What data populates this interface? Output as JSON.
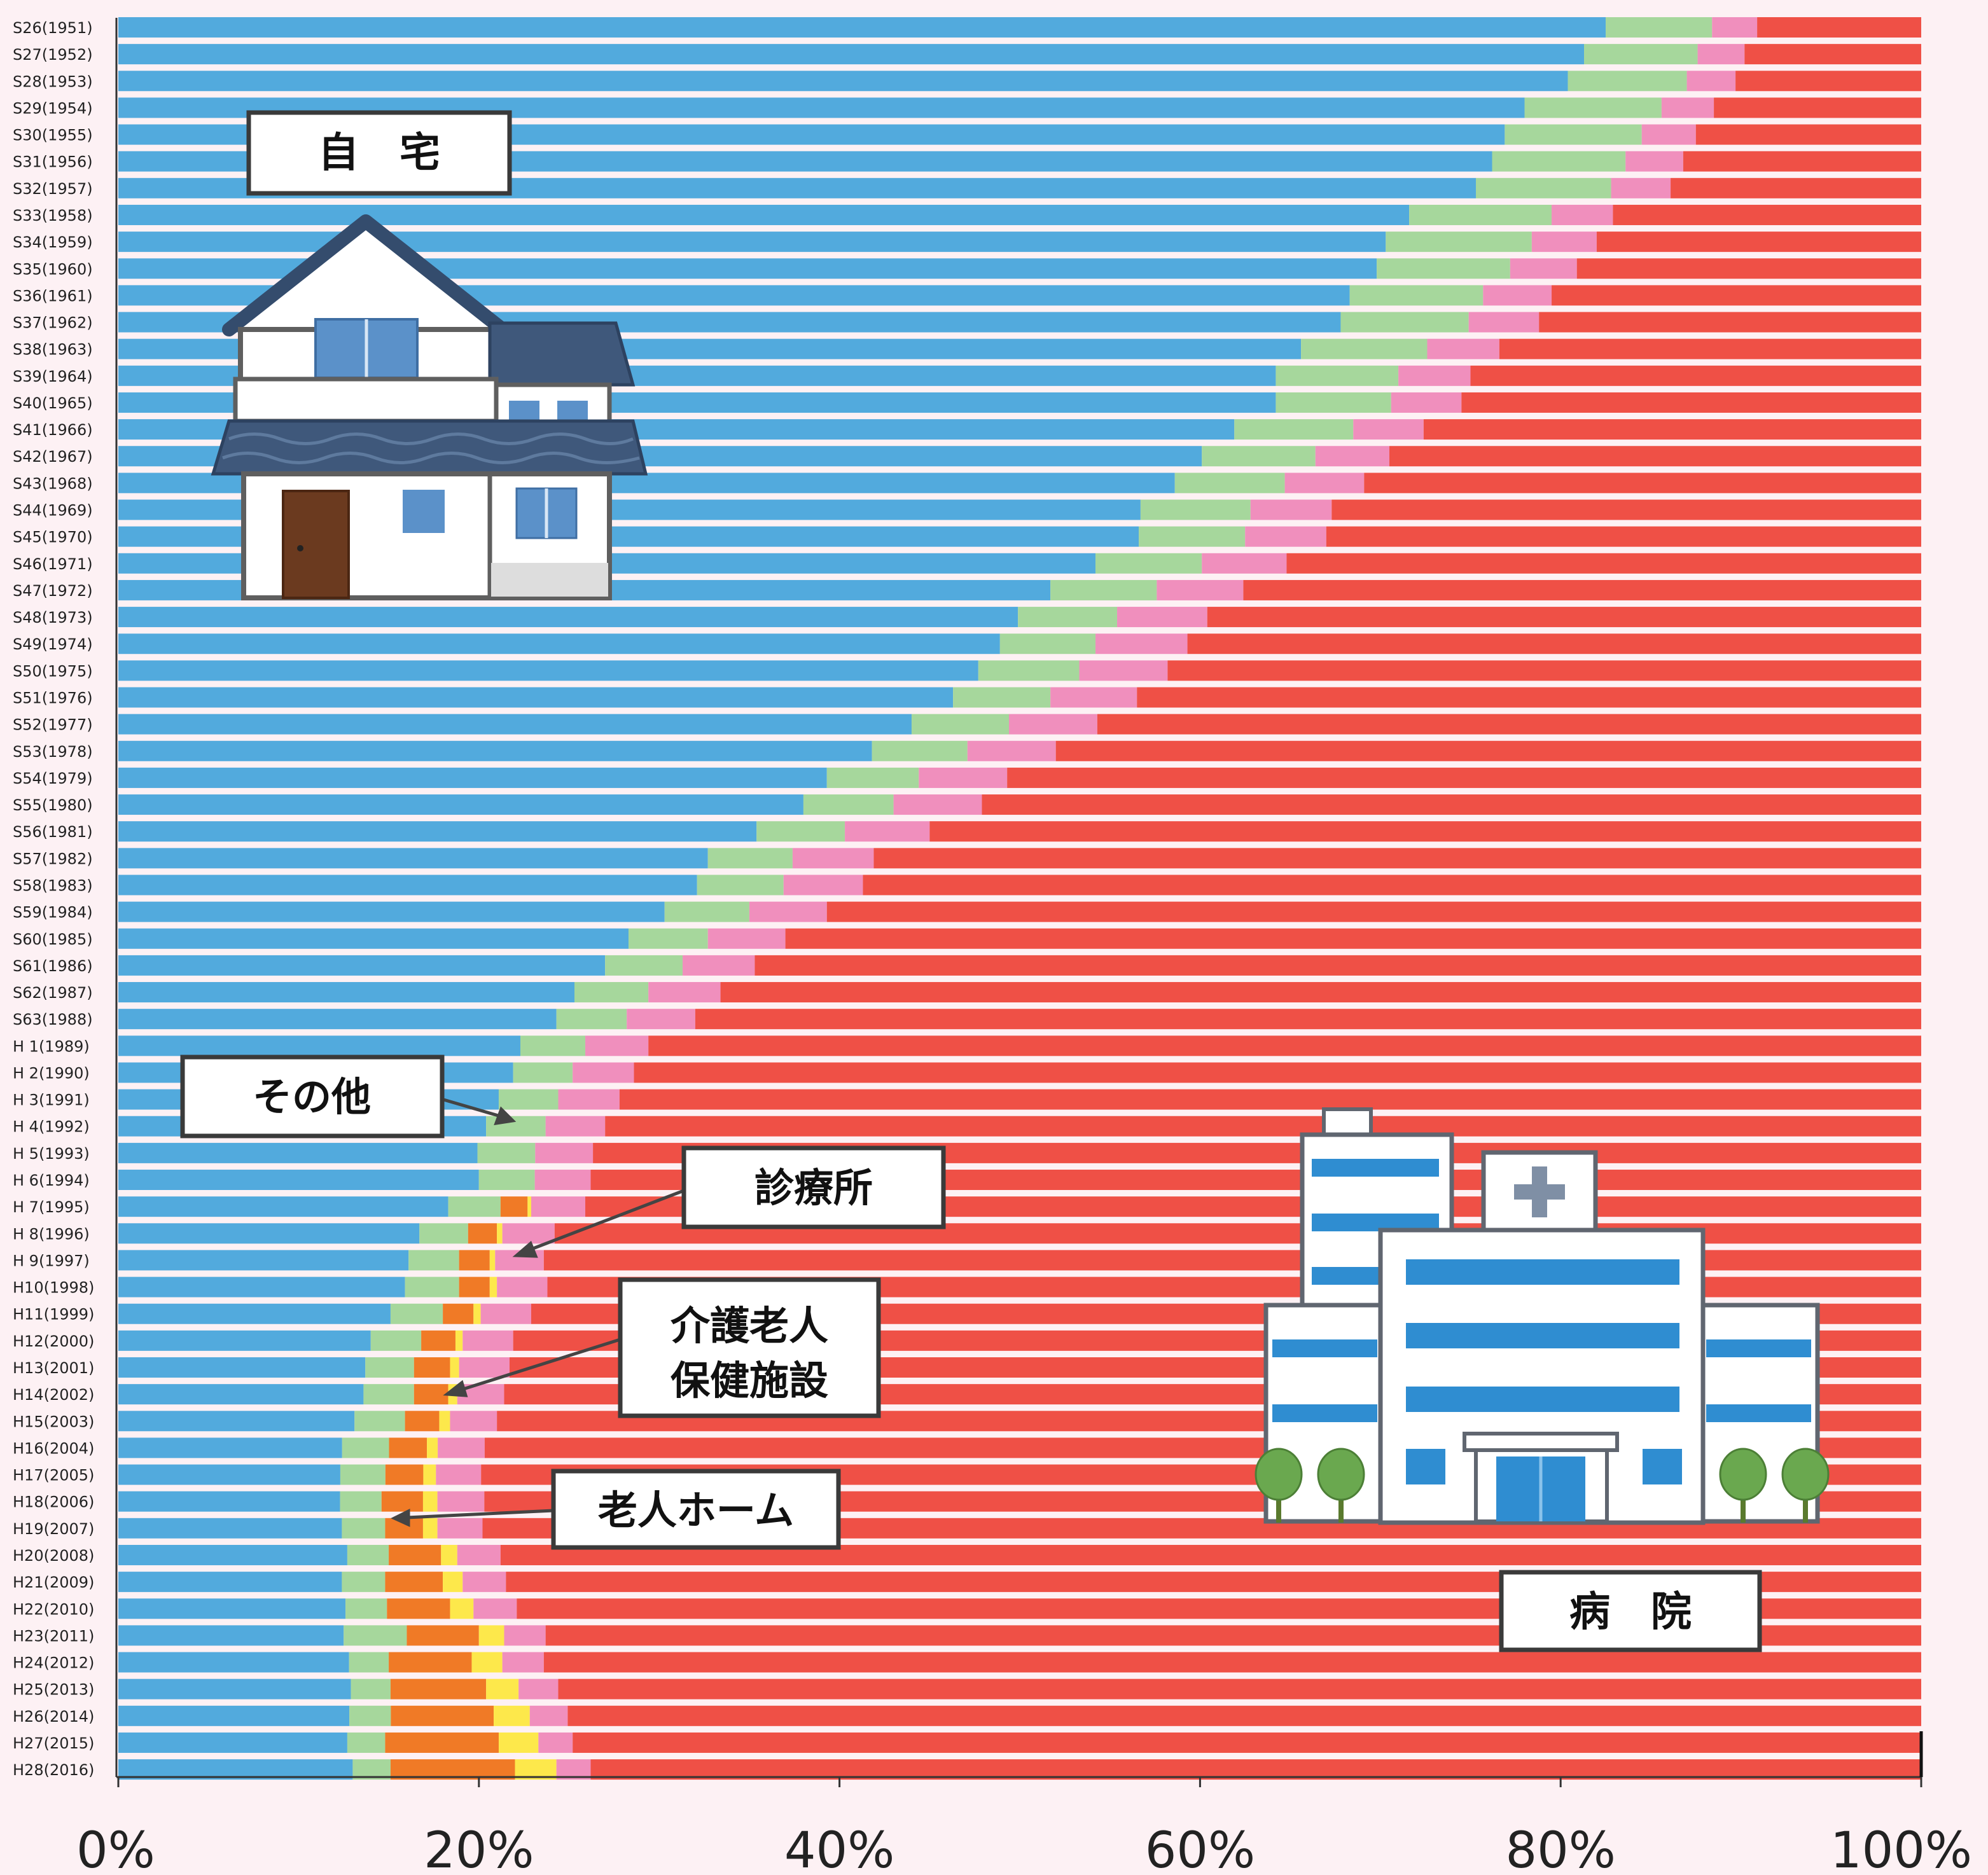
{
  "chart_data": {
    "type": "bar",
    "orientation": "horizontal",
    "stacked": true,
    "normalized": "percent",
    "title": "",
    "xlabel": "",
    "ylabel": "",
    "xlim": [
      0,
      100
    ],
    "x_ticks": [
      "0%",
      "20%",
      "40%",
      "60%",
      "80%",
      "100%"
    ],
    "categories": [
      "S26(1951)",
      "S27(1952)",
      "S28(1953)",
      "S29(1954)",
      "S30(1955)",
      "S31(1956)",
      "S32(1957)",
      "S33(1958)",
      "S34(1959)",
      "S35(1960)",
      "S36(1961)",
      "S37(1962)",
      "S38(1963)",
      "S39(1964)",
      "S40(1965)",
      "S41(1966)",
      "S42(1967)",
      "S43(1968)",
      "S44(1969)",
      "S45(1970)",
      "S46(1971)",
      "S47(1972)",
      "S48(1973)",
      "S49(1974)",
      "S50(1975)",
      "S51(1976)",
      "S52(1977)",
      "S53(1978)",
      "S54(1979)",
      "S55(1980)",
      "S56(1981)",
      "S57(1982)",
      "S58(1983)",
      "S59(1984)",
      "S60(1985)",
      "S61(1986)",
      "S62(1987)",
      "S63(1988)",
      "H  1(1989)",
      "H  2(1990)",
      "H  3(1991)",
      "H  4(1992)",
      "H  5(1993)",
      "H  6(1994)",
      "H  7(1995)",
      "H  8(1996)",
      "H  9(1997)",
      "H10(1998)",
      "H11(1999)",
      "H12(2000)",
      "H13(2001)",
      "H14(2002)",
      "H15(2003)",
      "H16(2004)",
      "H17(2005)",
      "H18(2006)",
      "H19(2007)",
      "H20(2008)",
      "H21(2009)",
      "H22(2010)",
      "H23(2011)",
      "H24(2012)",
      "H25(2013)",
      "H26(2014)",
      "H27(2015)",
      "H28(2016)"
    ],
    "series_order": [
      "自宅",
      "その他",
      "介護老人保健施設",
      "老人ホーム",
      "診療所",
      "病院"
    ],
    "series": [
      {
        "key": "home",
        "color": "#52aadd",
        "values": [
          82.5,
          81.3,
          80.4,
          78.0,
          76.9,
          76.2,
          75.3,
          71.6,
          70.3,
          69.8,
          68.3,
          67.8,
          65.6,
          64.2,
          64.2,
          61.9,
          60.1,
          58.6,
          56.7,
          56.6,
          54.2,
          51.7,
          49.9,
          48.9,
          47.7,
          46.3,
          44.0,
          41.8,
          39.3,
          38.0,
          35.4,
          32.7,
          32.1,
          30.3,
          28.3,
          27.0,
          25.3,
          24.3,
          22.3,
          21.9,
          21.1,
          20.4,
          19.9,
          20.0,
          18.3,
          16.7,
          16.1,
          15.9,
          15.1,
          14.0,
          13.7,
          13.6,
          13.1,
          12.4,
          12.3,
          12.3,
          12.4,
          12.7,
          12.4,
          12.6,
          12.5,
          12.8,
          12.9,
          12.8,
          12.7,
          13.0
        ]
      },
      {
        "key": "other",
        "color": "#a6d79c",
        "values": [
          5.9,
          6.3,
          6.6,
          7.6,
          7.6,
          7.4,
          7.5,
          7.9,
          8.1,
          7.4,
          7.4,
          7.1,
          7.0,
          6.8,
          6.4,
          6.6,
          6.3,
          6.1,
          6.1,
          5.9,
          5.9,
          5.9,
          5.5,
          5.3,
          5.6,
          5.4,
          5.4,
          5.3,
          5.1,
          5.0,
          4.9,
          4.7,
          4.8,
          4.7,
          4.4,
          4.3,
          4.1,
          3.9,
          3.6,
          3.3,
          3.3,
          3.3,
          3.2,
          3.1,
          2.9,
          2.7,
          2.8,
          3.0,
          2.9,
          2.8,
          2.7,
          2.8,
          2.8,
          2.6,
          2.5,
          2.3,
          2.4,
          2.3,
          2.4,
          2.3,
          3.5,
          2.2,
          2.2,
          2.3,
          2.1,
          2.1
        ]
      },
      {
        "key": "rokenshisetsu",
        "color": "#f07a26",
        "values": [
          0,
          0,
          0,
          0,
          0,
          0,
          0,
          0,
          0,
          0,
          0,
          0,
          0,
          0,
          0,
          0,
          0,
          0,
          0,
          0,
          0,
          0,
          0,
          0,
          0,
          0,
          0,
          0,
          0,
          0,
          0,
          0,
          0,
          0,
          0,
          0,
          0,
          0,
          0,
          0,
          0,
          0,
          0,
          0,
          1.5,
          1.6,
          1.7,
          1.7,
          1.7,
          1.9,
          2.0,
          1.9,
          1.9,
          2.1,
          2.1,
          2.3,
          2.1,
          2.9,
          3.2,
          3.5,
          4.0,
          4.6,
          5.3,
          5.7,
          6.3,
          6.9
        ]
      },
      {
        "key": "rojinhome",
        "color": "#fde84b",
        "values": [
          0,
          0,
          0,
          0,
          0,
          0,
          0,
          0,
          0,
          0,
          0,
          0,
          0,
          0,
          0,
          0,
          0,
          0,
          0,
          0,
          0,
          0,
          0,
          0,
          0,
          0,
          0,
          0,
          0,
          0,
          0,
          0,
          0,
          0,
          0,
          0,
          0,
          0,
          0,
          0,
          0,
          0,
          0,
          0,
          0.2,
          0.3,
          0.3,
          0.4,
          0.4,
          0.4,
          0.5,
          0.5,
          0.6,
          0.6,
          0.7,
          0.8,
          0.8,
          0.9,
          1.1,
          1.3,
          1.4,
          1.7,
          1.8,
          2.0,
          2.2,
          2.3
        ]
      },
      {
        "key": "shinryosho",
        "color": "#f08fbd",
        "values": [
          2.5,
          2.6,
          2.7,
          2.9,
          3.0,
          3.2,
          3.3,
          3.4,
          3.6,
          3.7,
          3.8,
          3.9,
          4.0,
          4.0,
          3.9,
          3.9,
          4.1,
          4.4,
          4.5,
          4.5,
          4.7,
          4.8,
          5.0,
          5.1,
          4.9,
          4.8,
          4.9,
          4.9,
          4.9,
          4.9,
          4.7,
          4.5,
          4.4,
          4.3,
          4.3,
          4.0,
          4.0,
          3.8,
          3.5,
          3.4,
          3.4,
          3.3,
          3.2,
          3.1,
          3.0,
          2.9,
          2.7,
          2.8,
          2.8,
          2.8,
          2.8,
          2.6,
          2.6,
          2.6,
          2.5,
          2.6,
          2.5,
          2.4,
          2.4,
          2.4,
          2.3,
          2.3,
          2.2,
          2.1,
          1.9,
          1.9
        ]
      },
      {
        "key": "hospital",
        "color": "#ef5046",
        "values": [
          9.1,
          9.8,
          10.3,
          11.5,
          12.5,
          13.2,
          13.9,
          17.1,
          18.0,
          19.1,
          20.5,
          21.2,
          23.4,
          25.0,
          25.5,
          27.6,
          29.5,
          30.9,
          32.7,
          33.0,
          35.2,
          37.6,
          39.6,
          40.7,
          41.8,
          43.5,
          45.7,
          48.0,
          50.7,
          52.1,
          55.0,
          58.1,
          58.7,
          60.7,
          63.0,
          64.7,
          66.6,
          68.0,
          70.6,
          71.4,
          72.2,
          73.0,
          73.6,
          73.8,
          74.1,
          75.8,
          76.4,
          76.2,
          77.1,
          78.1,
          78.3,
          78.6,
          79.0,
          79.6,
          79.8,
          79.7,
          79.8,
          78.8,
          78.5,
          77.9,
          76.3,
          76.4,
          75.6,
          75.0,
          74.8,
          73.8
        ]
      }
    ]
  },
  "labels": {
    "home": "自　宅",
    "other": "その他",
    "clinic": "診療所",
    "rokenshisetsu_line1": "介護老人",
    "rokenshisetsu_line2": "保健施設",
    "rojinhome": "老人ホーム",
    "hospital": "病　院"
  }
}
